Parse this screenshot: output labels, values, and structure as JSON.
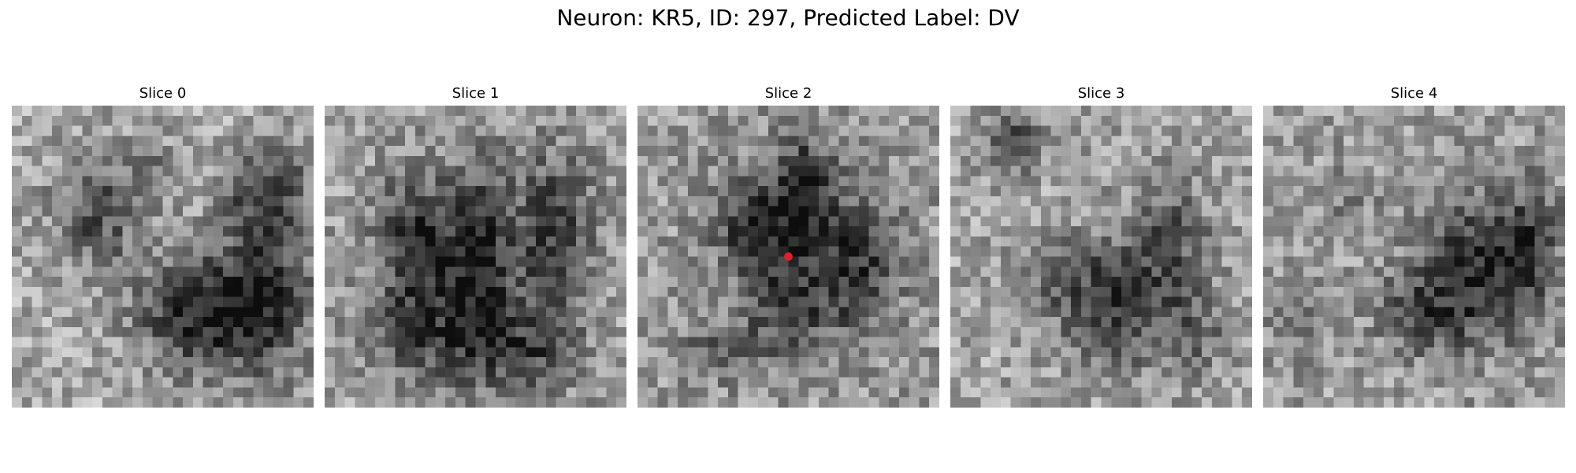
{
  "figure": {
    "title": "Neuron: KR5, ID: 297, Predicted Label: DV"
  },
  "panels": [
    {
      "title": "Slice 0",
      "marker": false
    },
    {
      "title": "Slice 1",
      "marker": false
    },
    {
      "title": "Slice 2",
      "marker": true
    },
    {
      "title": "Slice 3",
      "marker": false
    },
    {
      "title": "Slice 4",
      "marker": false
    }
  ],
  "marker_color": "#e0202a",
  "colormap": "gray"
}
